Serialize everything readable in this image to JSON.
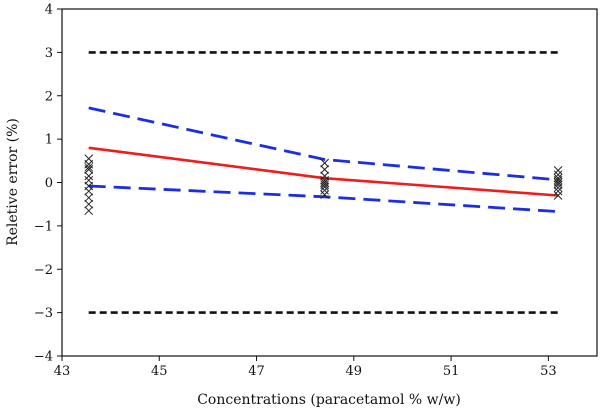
{
  "chart_data": {
    "type": "line",
    "xlabel": "Concentrations (paracetamol % w/w)",
    "ylabel": "Reletive error (%)",
    "xlim": [
      43,
      54
    ],
    "ylim": [
      -4,
      4
    ],
    "x_ticks": [
      43,
      45,
      47,
      49,
      51,
      53
    ],
    "y_ticks": [
      -4,
      -3,
      -2,
      -1,
      0,
      1,
      2,
      3,
      4
    ],
    "y_tick_labels": [
      "−4",
      "−3",
      "−2",
      "−1",
      "0",
      "1",
      "2",
      "3",
      "4"
    ],
    "grid": false,
    "colors": {
      "mean": "#ee1c1c",
      "tolerance": "#1b2fe0",
      "acceptance": "#111111",
      "points": "#222222"
    },
    "series": [
      {
        "role": "acceptance-upper",
        "style": "dashed-black",
        "x": [
          43.55,
          53.2
        ],
        "y": [
          3,
          3
        ]
      },
      {
        "role": "acceptance-lower",
        "style": "dashed-black",
        "x": [
          43.55,
          53.2
        ],
        "y": [
          -3,
          -3
        ]
      },
      {
        "role": "tolerance-upper",
        "style": "dashed-blue",
        "x": [
          43.55,
          48.4,
          53.2
        ],
        "y": [
          1.72,
          0.53,
          0.06
        ]
      },
      {
        "role": "tolerance-lower",
        "style": "dashed-blue",
        "x": [
          43.55,
          48.4,
          53.2
        ],
        "y": [
          -0.08,
          -0.33,
          -0.67
        ]
      },
      {
        "role": "mean-bias",
        "style": "solid-red",
        "x": [
          43.55,
          48.4,
          53.2
        ],
        "y": [
          0.8,
          0.1,
          -0.3
        ]
      }
    ],
    "scatter": {
      "marker": "x",
      "points": [
        {
          "x": 43.55,
          "y": 0.55
        },
        {
          "x": 43.55,
          "y": 0.42
        },
        {
          "x": 43.55,
          "y": 0.35
        },
        {
          "x": 43.55,
          "y": 0.3
        },
        {
          "x": 43.55,
          "y": 0.15
        },
        {
          "x": 43.55,
          "y": 0.05
        },
        {
          "x": 43.55,
          "y": -0.08
        },
        {
          "x": 43.55,
          "y": -0.2
        },
        {
          "x": 43.55,
          "y": -0.35
        },
        {
          "x": 43.55,
          "y": -0.5
        },
        {
          "x": 43.55,
          "y": -0.65
        },
        {
          "x": 48.4,
          "y": 0.45
        },
        {
          "x": 48.4,
          "y": 0.3
        },
        {
          "x": 48.4,
          "y": 0.15
        },
        {
          "x": 48.4,
          "y": 0.05
        },
        {
          "x": 48.4,
          "y": 0.0
        },
        {
          "x": 48.4,
          "y": -0.05
        },
        {
          "x": 48.4,
          "y": -0.1
        },
        {
          "x": 48.4,
          "y": -0.18
        },
        {
          "x": 48.4,
          "y": -0.28
        },
        {
          "x": 53.2,
          "y": 0.28
        },
        {
          "x": 53.2,
          "y": 0.18
        },
        {
          "x": 53.2,
          "y": 0.1
        },
        {
          "x": 53.2,
          "y": 0.05
        },
        {
          "x": 53.2,
          "y": 0.0
        },
        {
          "x": 53.2,
          "y": -0.05
        },
        {
          "x": 53.2,
          "y": -0.12
        },
        {
          "x": 53.2,
          "y": -0.2
        },
        {
          "x": 53.2,
          "y": -0.3
        }
      ]
    }
  }
}
